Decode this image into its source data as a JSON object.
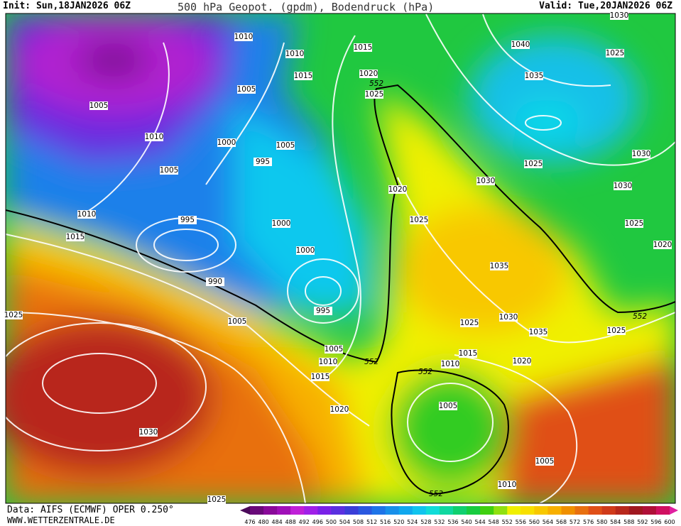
{
  "header": {
    "init": "Init: Sun,18JAN2026 06Z",
    "title": "500 hPa Geopot. (gpdm), Bodendruck (hPa)",
    "valid": "Valid: Tue,20JAN2026 06Z"
  },
  "footer": {
    "data": "Data: AIFS (ECMWF) OPER 0.250°",
    "site": "WWW.WETTERZENTRALE.DE"
  },
  "isobar_labels": [
    "1010",
    "1010",
    "1015",
    "1040",
    "1025",
    "1030",
    "1015",
    "1020",
    "1035",
    "1005",
    "1025",
    "1005",
    "1010",
    "1000",
    "1005",
    "995",
    "1030",
    "1025",
    "1005",
    "1030",
    "1020",
    "1030",
    "1010",
    "995",
    "1025",
    "1000",
    "1025",
    "1015",
    "1020",
    "1000",
    "1035",
    "990",
    "995",
    "1025",
    "1030",
    "1005",
    "1025",
    "1035",
    "1025",
    "1005",
    "1015",
    "1020",
    "1010",
    "1010",
    "1015",
    "1020",
    "1005",
    "1030",
    "1005",
    "1010",
    "1025"
  ],
  "contour_552_labels": [
    "552",
    "552",
    "552",
    "552",
    "552"
  ],
  "legend": {
    "ticks": [
      476,
      480,
      484,
      488,
      492,
      496,
      500,
      504,
      508,
      512,
      516,
      520,
      524,
      528,
      532,
      536,
      540,
      544,
      548,
      552,
      556,
      560,
      564,
      568,
      572,
      576,
      580,
      584,
      588,
      592,
      596,
      600
    ],
    "colors": [
      "#4b0a5a",
      "#6a0a7a",
      "#8a0a9a",
      "#a010b8",
      "#c020d8",
      "#a020e8",
      "#7a22e8",
      "#5a30e0",
      "#3a3ed8",
      "#2a58e0",
      "#1e74e8",
      "#1890ea",
      "#10a8ee",
      "#10c4ee",
      "#10dcd8",
      "#10d8a0",
      "#10d070",
      "#18cc40",
      "#40d010",
      "#90e010",
      "#f0f000",
      "#f8e000",
      "#f8c800",
      "#f8b000",
      "#f09000",
      "#e87010",
      "#e05018",
      "#d03a1a",
      "#b8281c",
      "#a01820",
      "#b01038",
      "#d01060",
      "#e020a0"
    ]
  }
}
